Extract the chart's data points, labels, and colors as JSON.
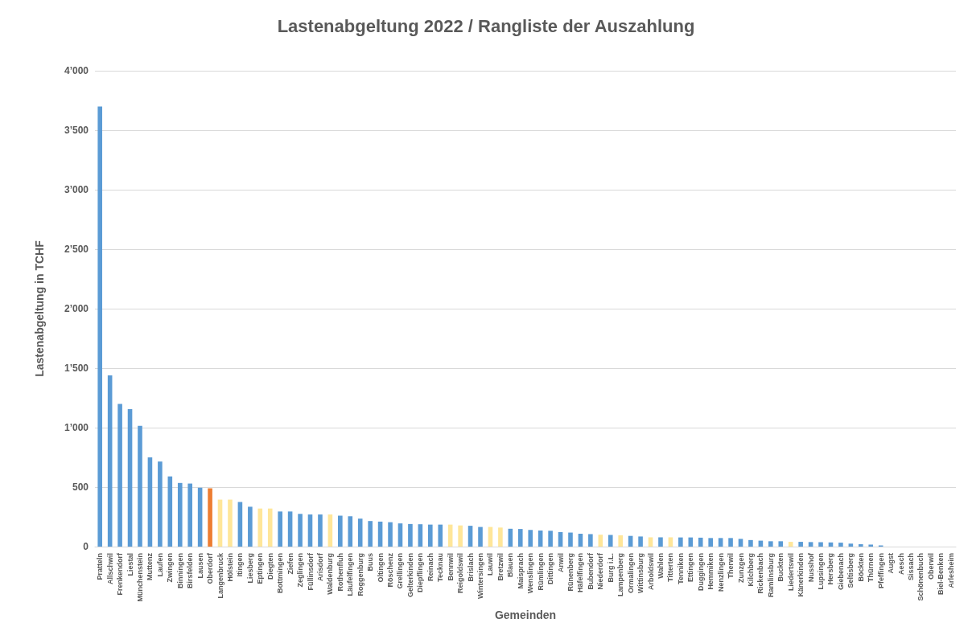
{
  "chart_data": {
    "type": "bar",
    "title": "Lastenabgeltung 2022 / Rangliste der Auszahlung",
    "xlabel": "Gemeinden",
    "ylabel": "Lastenabgeltung in TCHF",
    "categories": [
      "Pratteln",
      "Allschwil",
      "Frenkendorf",
      "Liestal",
      "Münchenstein",
      "Muttenz",
      "Laufen",
      "Zwingen",
      "Binningen",
      "Birsfelden",
      "Lausen",
      "Oberdorf",
      "Langenbruck",
      "Hölstein",
      "Itingen",
      "Liesberg",
      "Eptingen",
      "Diegten",
      "Bottmingen",
      "Ziefen",
      "Zeglingen",
      "Füllinsdorf",
      "Arisdorf",
      "Waldenburg",
      "Rothenfluh",
      "Läufelfingen",
      "Roggenburg",
      "Buus",
      "Oltingen",
      "Röschenz",
      "Grellingen",
      "Gelterkinden",
      "Diepflingen",
      "Reinach",
      "Tecknau",
      "Bennwil",
      "Reigoldswil",
      "Brislach",
      "Wintersingen",
      "Lauwil",
      "Bretzwil",
      "Blauen",
      "Maisprach",
      "Wenslingen",
      "Rümlingen",
      "Dittingen",
      "Anwil",
      "Rünenberg",
      "Häfelfingen",
      "Bubendorf",
      "Niederdorf",
      "Burg i.L.",
      "Lampenberg",
      "Ormalingen",
      "Wittinsburg",
      "Arboldswil",
      "Wahlen",
      "Titterten",
      "Tenniken",
      "Ettingen",
      "Duggingen",
      "Hemmiken",
      "Nenzlingen",
      "Therwil",
      "Zunzgen",
      "Kilchberg",
      "Rickenbach",
      "Ramlinsburg",
      "Buckten",
      "Liedertswil",
      "Känerkinden",
      "Nusshof",
      "Lupsingen",
      "Hersberg",
      "Giebenach",
      "Seltisberg",
      "Böckten",
      "Thürnen",
      "Pfeffingen",
      "Augst",
      "Aesch",
      "Sissach",
      "Schönenbuch",
      "Oberwil",
      "Biel-Benken",
      "Arlesheim"
    ],
    "values": [
      3700,
      1440,
      1200,
      1155,
      1015,
      750,
      715,
      590,
      535,
      530,
      495,
      490,
      395,
      395,
      375,
      335,
      320,
      320,
      295,
      295,
      275,
      270,
      270,
      270,
      260,
      255,
      235,
      215,
      210,
      205,
      195,
      190,
      188,
      185,
      185,
      185,
      178,
      175,
      165,
      165,
      160,
      150,
      148,
      140,
      135,
      133,
      122,
      118,
      108,
      105,
      100,
      98,
      95,
      90,
      85,
      78,
      78,
      78,
      77,
      77,
      75,
      72,
      72,
      72,
      65,
      55,
      50,
      45,
      45,
      40,
      40,
      38,
      37,
      35,
      33,
      25,
      20,
      17,
      10,
      0,
      0,
      0,
      0,
      0,
      0,
      0
    ],
    "colors": [
      "#5b9bd5",
      "#5b9bd5",
      "#5b9bd5",
      "#5b9bd5",
      "#5b9bd5",
      "#5b9bd5",
      "#5b9bd5",
      "#5b9bd5",
      "#5b9bd5",
      "#5b9bd5",
      "#5b9bd5",
      "#ed7d31",
      "#ffe699",
      "#ffe699",
      "#5b9bd5",
      "#5b9bd5",
      "#ffe699",
      "#ffe699",
      "#5b9bd5",
      "#5b9bd5",
      "#5b9bd5",
      "#5b9bd5",
      "#5b9bd5",
      "#ffe699",
      "#5b9bd5",
      "#5b9bd5",
      "#5b9bd5",
      "#5b9bd5",
      "#5b9bd5",
      "#5b9bd5",
      "#5b9bd5",
      "#5b9bd5",
      "#5b9bd5",
      "#5b9bd5",
      "#5b9bd5",
      "#ffe699",
      "#ffe699",
      "#5b9bd5",
      "#5b9bd5",
      "#ffe699",
      "#ffe699",
      "#5b9bd5",
      "#5b9bd5",
      "#5b9bd5",
      "#5b9bd5",
      "#5b9bd5",
      "#5b9bd5",
      "#5b9bd5",
      "#5b9bd5",
      "#5b9bd5",
      "#ffe699",
      "#5b9bd5",
      "#ffe699",
      "#5b9bd5",
      "#5b9bd5",
      "#ffe699",
      "#5b9bd5",
      "#ffe699",
      "#5b9bd5",
      "#5b9bd5",
      "#5b9bd5",
      "#5b9bd5",
      "#5b9bd5",
      "#5b9bd5",
      "#5b9bd5",
      "#5b9bd5",
      "#5b9bd5",
      "#5b9bd5",
      "#5b9bd5",
      "#ffe699",
      "#5b9bd5",
      "#5b9bd5",
      "#5b9bd5",
      "#5b9bd5",
      "#5b9bd5",
      "#5b9bd5",
      "#5b9bd5",
      "#5b9bd5",
      "#5b9bd5",
      "#5b9bd5",
      "#5b9bd5",
      "#5b9bd5",
      "#5b9bd5",
      "#5b9bd5",
      "#5b9bd5",
      "#5b9bd5"
    ],
    "ylim": [
      0,
      4000
    ],
    "yticks": [
      0,
      500,
      {
        "value": 1000,
        "label": "1’000"
      },
      {
        "value": 1500,
        "label": "1’500"
      },
      {
        "value": 2000,
        "label": "2’000"
      },
      {
        "value": 2500,
        "label": "2’500"
      },
      {
        "value": 3000,
        "label": "3’000"
      },
      {
        "value": 3500,
        "label": "3’500"
      },
      {
        "value": 4000,
        "label": "4’000"
      }
    ],
    "grid": "y"
  }
}
